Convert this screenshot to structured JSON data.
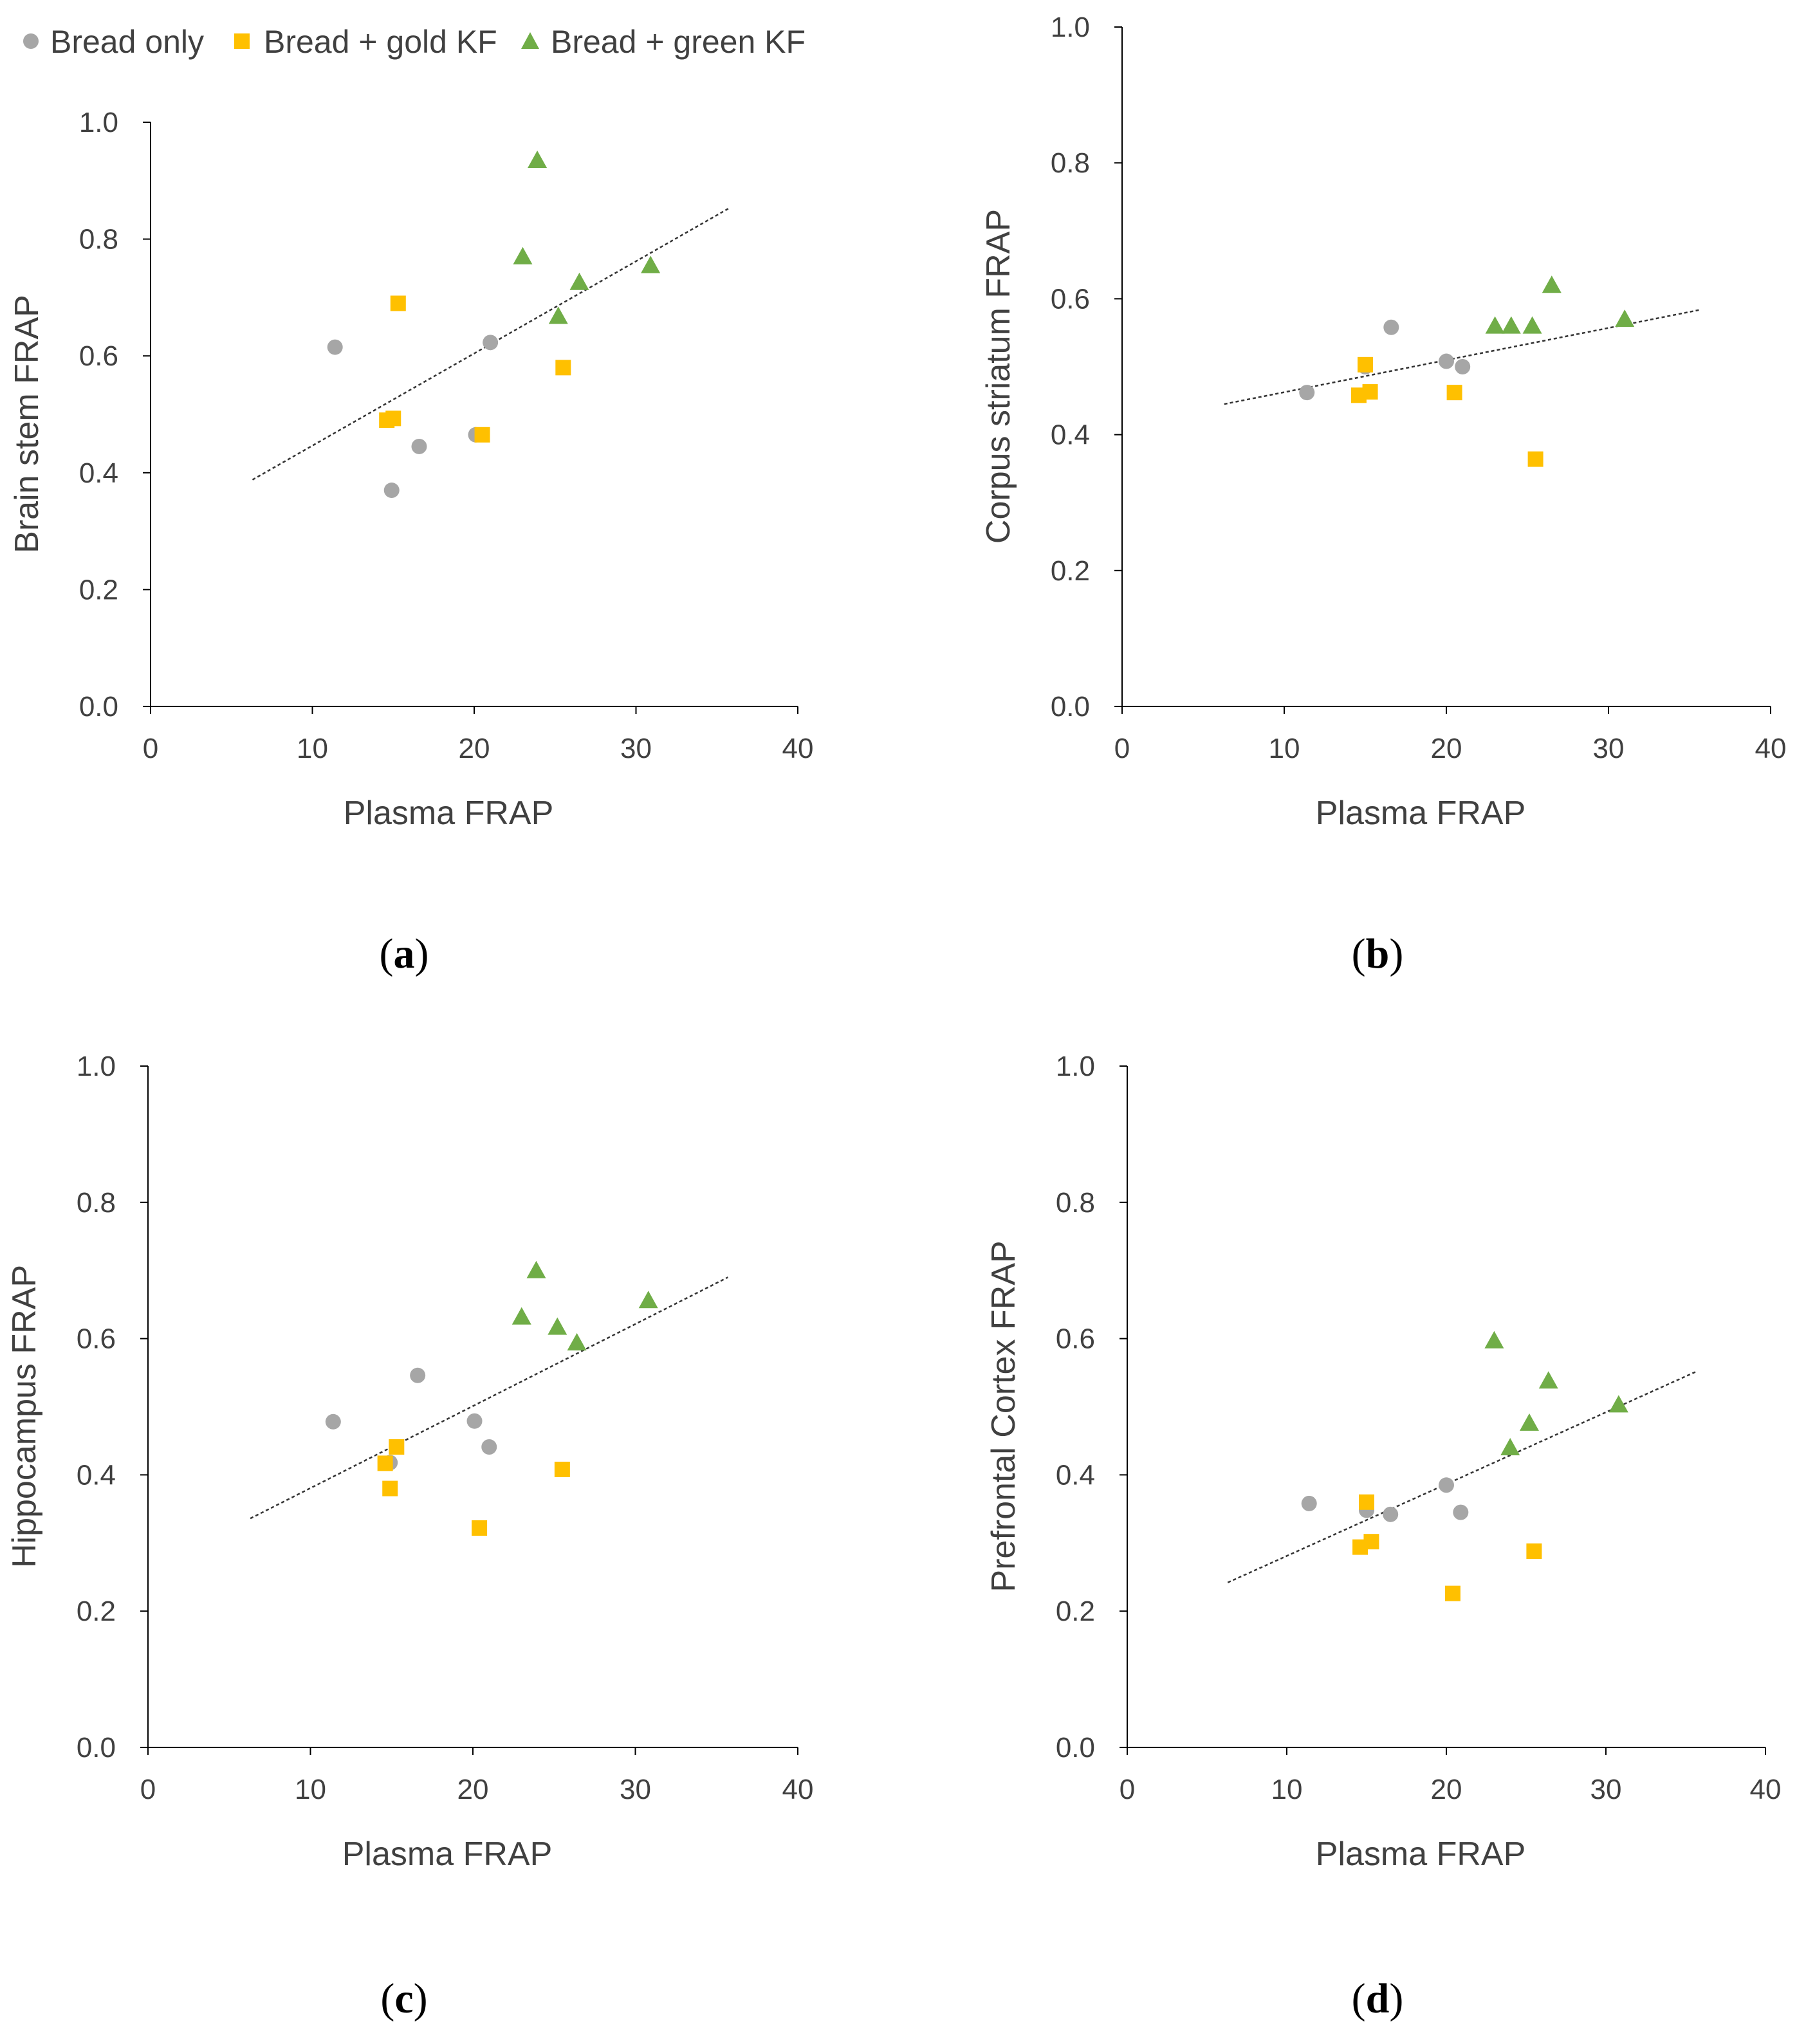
{
  "legend": {
    "items": [
      {
        "label": "Bread only",
        "shape": "circle",
        "color": "#A6A6A6"
      },
      {
        "label": "Bread + gold KF",
        "shape": "square",
        "color": "#FFC000"
      },
      {
        "label": "Bread + green KF",
        "shape": "triangle",
        "color": "#70AD47"
      }
    ]
  },
  "chart_data": [
    {
      "id": "a",
      "type": "scatter",
      "caption_open": "(",
      "caption_letter": "a",
      "caption_close": ")",
      "xlabel": "Plasma FRAP",
      "ylabel": "Brain stem FRAP",
      "xlim": [
        0,
        40
      ],
      "ylim": [
        0,
        1.0
      ],
      "xticks": [
        "0",
        "10",
        "20",
        "30",
        "40"
      ],
      "yticks": [
        "0.0",
        "0.2",
        "0.4",
        "0.6",
        "0.8",
        "1.0"
      ],
      "series": [
        {
          "name": "Bread only",
          "points": [
            [
              11.4,
              0.615
            ],
            [
              14.9,
              0.37
            ],
            [
              16.6,
              0.445
            ],
            [
              20.1,
              0.465
            ],
            [
              21.0,
              0.623
            ]
          ]
        },
        {
          "name": "Bread + gold KF",
          "points": [
            [
              14.6,
              0.49
            ],
            [
              15.0,
              0.493
            ],
            [
              15.3,
              0.69
            ],
            [
              20.5,
              0.465
            ],
            [
              25.5,
              0.58
            ]
          ]
        },
        {
          "name": "Bread + green KF",
          "points": [
            [
              23.0,
              0.77
            ],
            [
              23.9,
              0.935
            ],
            [
              25.2,
              0.668
            ],
            [
              26.5,
              0.726
            ],
            [
              30.9,
              0.755
            ]
          ]
        }
      ],
      "trendline": {
        "x": [
          6.3,
          35.7
        ],
        "y": [
          0.388,
          0.852
        ]
      }
    },
    {
      "id": "b",
      "type": "scatter",
      "caption_open": "(",
      "caption_letter": "b",
      "caption_close": ")",
      "xlabel": "Plasma FRAP",
      "ylabel": "Corpus striatum FRAP",
      "xlim": [
        0,
        40
      ],
      "ylim": [
        0,
        1.0
      ],
      "xticks": [
        "0",
        "10",
        "20",
        "30",
        "40"
      ],
      "yticks": [
        "0.0",
        "0.2",
        "0.4",
        "0.6",
        "0.8",
        "1.0"
      ],
      "series": [
        {
          "name": "Bread only",
          "points": [
            [
              11.4,
              0.462
            ],
            [
              15.0,
              0.5
            ],
            [
              16.6,
              0.558
            ],
            [
              20.0,
              0.508
            ],
            [
              21.0,
              0.5
            ]
          ]
        },
        {
          "name": "Bread + gold KF",
          "points": [
            [
              14.6,
              0.458
            ],
            [
              15.0,
              0.503
            ],
            [
              15.3,
              0.463
            ],
            [
              20.5,
              0.462
            ],
            [
              25.5,
              0.364
            ]
          ]
        },
        {
          "name": "Bread + green KF",
          "points": [
            [
              23.0,
              0.56
            ],
            [
              24.0,
              0.56
            ],
            [
              25.3,
              0.56
            ],
            [
              26.5,
              0.62
            ],
            [
              31.0,
              0.57
            ]
          ]
        }
      ],
      "trendline": {
        "x": [
          6.3,
          35.7
        ],
        "y": [
          0.445,
          0.584
        ]
      }
    },
    {
      "id": "c",
      "type": "scatter",
      "caption_open": "(",
      "caption_letter": "c",
      "caption_close": ")",
      "xlabel": "Plasma FRAP",
      "ylabel": "Hippocampus FRAP",
      "xlim": [
        0,
        40
      ],
      "ylim": [
        0,
        1.0
      ],
      "xticks": [
        "0",
        "10",
        "20",
        "30",
        "40"
      ],
      "yticks": [
        "0.0",
        "0.2",
        "0.4",
        "0.6",
        "0.8",
        "1.0"
      ],
      "series": [
        {
          "name": "Bread only",
          "points": [
            [
              11.4,
              0.478
            ],
            [
              14.9,
              0.418
            ],
            [
              16.6,
              0.546
            ],
            [
              20.1,
              0.479
            ],
            [
              21.0,
              0.441
            ]
          ]
        },
        {
          "name": "Bread + gold KF",
          "points": [
            [
              14.6,
              0.417
            ],
            [
              14.9,
              0.38
            ],
            [
              15.3,
              0.441
            ],
            [
              20.4,
              0.322
            ],
            [
              25.5,
              0.408
            ]
          ]
        },
        {
          "name": "Bread + green KF",
          "points": [
            [
              23.0,
              0.632
            ],
            [
              23.9,
              0.7
            ],
            [
              25.2,
              0.617
            ],
            [
              26.4,
              0.594
            ],
            [
              30.8,
              0.656
            ]
          ]
        }
      ],
      "trendline": {
        "x": [
          6.3,
          35.7
        ],
        "y": [
          0.336,
          0.69
        ]
      }
    },
    {
      "id": "d",
      "type": "scatter",
      "caption_open": "(",
      "caption_letter": "d",
      "caption_close": ")",
      "xlabel": "Plasma FRAP",
      "ylabel": "Prefrontal Cortex  FRAP",
      "xlim": [
        0,
        40
      ],
      "ylim": [
        0,
        1.0
      ],
      "xticks": [
        "0",
        "10",
        "20",
        "30",
        "40"
      ],
      "yticks": [
        "0.0",
        "0.2",
        "0.4",
        "0.6",
        "0.8",
        "1.0"
      ],
      "series": [
        {
          "name": "Bread only",
          "points": [
            [
              11.4,
              0.358
            ],
            [
              15.0,
              0.348
            ],
            [
              16.5,
              0.342
            ],
            [
              20.0,
              0.385
            ],
            [
              20.9,
              0.345
            ]
          ]
        },
        {
          "name": "Bread + gold KF",
          "points": [
            [
              14.6,
              0.294
            ],
            [
              15.0,
              0.36
            ],
            [
              15.3,
              0.302
            ],
            [
              20.4,
              0.226
            ],
            [
              25.5,
              0.288
            ]
          ]
        },
        {
          "name": "Bread + green KF",
          "points": [
            [
              23.0,
              0.597
            ],
            [
              24.0,
              0.44
            ],
            [
              25.2,
              0.476
            ],
            [
              26.4,
              0.538
            ],
            [
              30.8,
              0.503
            ]
          ]
        }
      ],
      "trendline": {
        "x": [
          6.3,
          35.7
        ],
        "y": [
          0.242,
          0.552
        ]
      }
    }
  ]
}
